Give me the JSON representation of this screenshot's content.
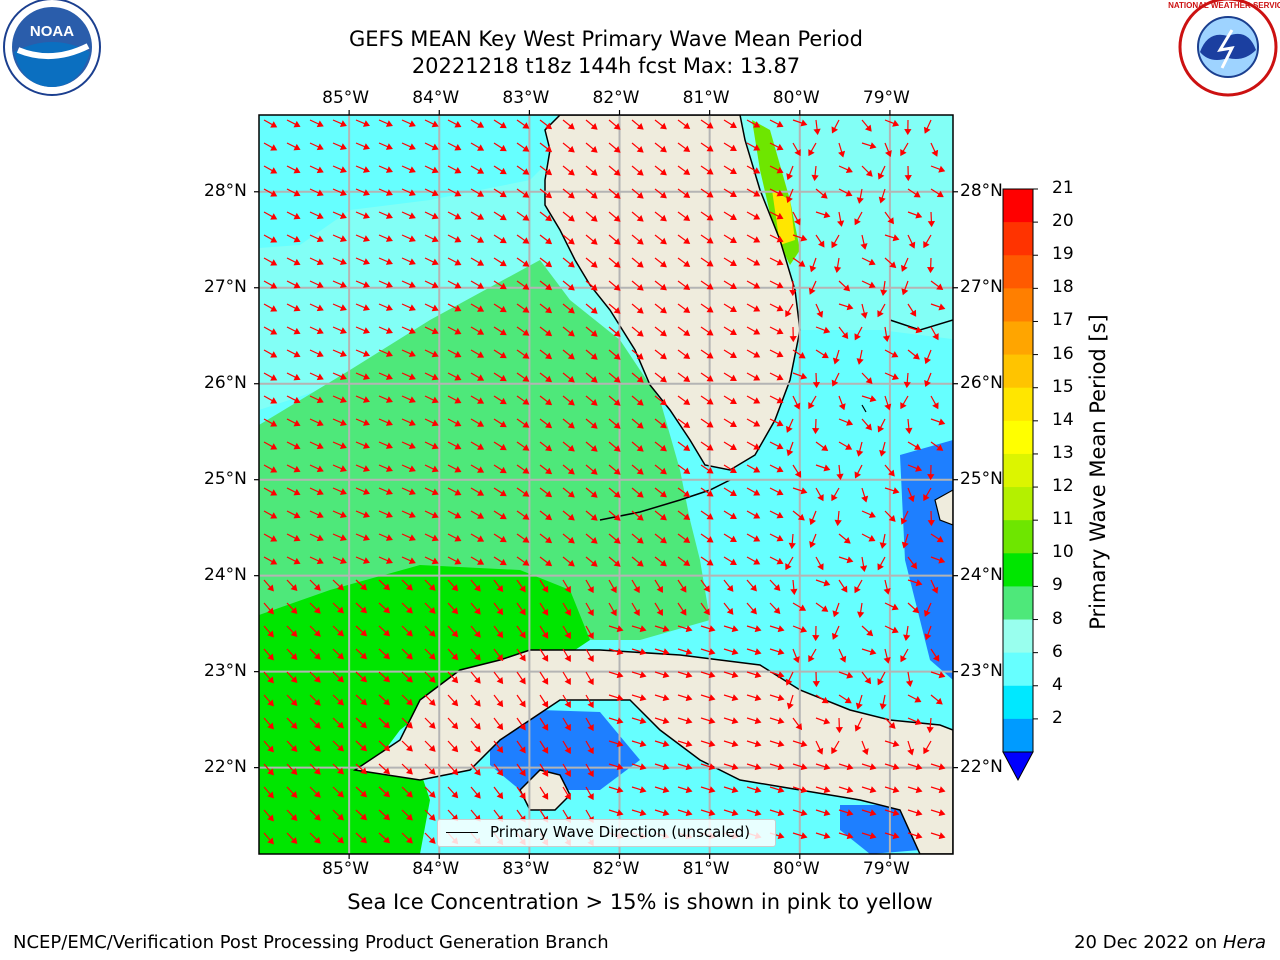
{
  "header": {
    "title_line1": "GEFS MEAN Key West Primary Wave Mean Period",
    "title_line2": "20221218 t18z 144h fcst   Max: 13.87"
  },
  "logos": {
    "left": "noaa-logo",
    "right": "national-weather-service-logo",
    "left_text": "NOAA",
    "right_text": "NATIONAL WEATHER SERVICE"
  },
  "map": {
    "lon_labels": [
      "85°W",
      "84°W",
      "83°W",
      "82°W",
      "81°W",
      "80°W",
      "79°W"
    ],
    "lat_labels": [
      "28°N",
      "27°N",
      "26°N",
      "25°N",
      "24°N",
      "23°N",
      "22°N"
    ],
    "lon_range": [
      -86,
      -78.3
    ],
    "lat_range": [
      21.1,
      28.8
    ],
    "land_color": "#efecdd",
    "gridline_color": "#b4b4b4",
    "arrow_color": "#ff0000"
  },
  "legend": {
    "label": "Primary Wave Direction (unscaled)"
  },
  "colorbar": {
    "label": "Primary Wave Mean Period [s]",
    "ticks": [
      "21",
      "20",
      "19",
      "18",
      "17",
      "16",
      "15",
      "14",
      "13",
      "12",
      "11",
      "10",
      "9",
      "8",
      "6",
      "4",
      "2"
    ],
    "colors": [
      "#ff0000",
      "#ff3300",
      "#ff5a00",
      "#ff7f00",
      "#ffa500",
      "#ffc400",
      "#ffe600",
      "#ffff00",
      "#dcf500",
      "#b4f000",
      "#6ee600",
      "#00e600",
      "#4ee87a",
      "#99ffee",
      "#66ffff",
      "#00e8ff",
      "#009bff"
    ],
    "under_color": "#0000ff"
  },
  "caption": "Sea Ice Concentration > 15% is shown in pink to yellow",
  "footer": {
    "left": "NCEP/EMC/Verification Post Processing Product Generation Branch",
    "right_date": "20 Dec 2022 on ",
    "right_host": "Hera"
  }
}
